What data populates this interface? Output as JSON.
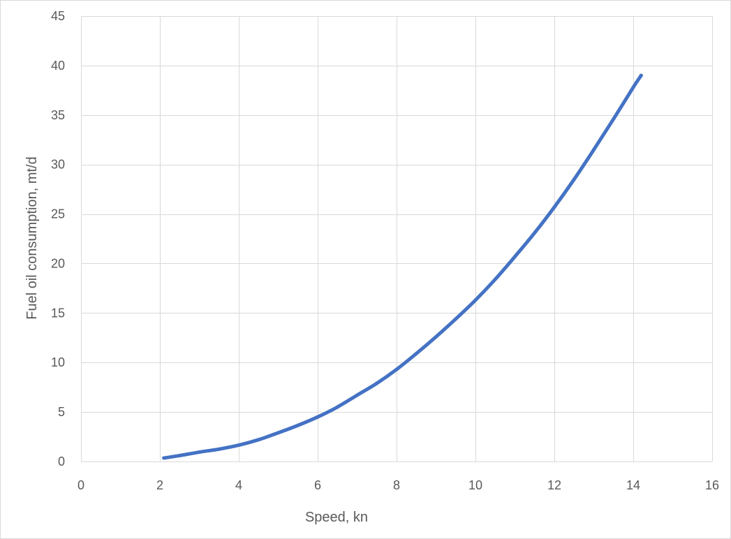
{
  "chart_data": {
    "type": "scatter",
    "xlabel": "Speed, kn",
    "ylabel": "Fuel oil consumption, mt/d",
    "xlim": [
      0,
      16
    ],
    "ylim": [
      0,
      45
    ],
    "xticks": [
      0,
      2,
      4,
      6,
      8,
      10,
      12,
      14,
      16
    ],
    "yticks": [
      0,
      5,
      10,
      15,
      20,
      25,
      30,
      35,
      40,
      45
    ],
    "grid": true,
    "series": [
      {
        "color": "#4472c4",
        "x": [
          2.1,
          2.5,
          3.0,
          3.5,
          4.0,
          4.5,
          5.0,
          5.5,
          6.0,
          6.5,
          7.0,
          7.5,
          8.0,
          8.5,
          9.0,
          9.5,
          10.0,
          10.5,
          11.0,
          11.5,
          12.0,
          12.5,
          13.0,
          13.5,
          14.0,
          14.2
        ],
        "y": [
          0.35,
          0.6,
          0.95,
          1.25,
          1.65,
          2.2,
          2.9,
          3.65,
          4.5,
          5.5,
          6.7,
          7.9,
          9.3,
          10.9,
          12.6,
          14.4,
          16.3,
          18.4,
          20.7,
          23.1,
          25.7,
          28.5,
          31.5,
          34.6,
          37.8,
          39.0
        ]
      }
    ]
  }
}
